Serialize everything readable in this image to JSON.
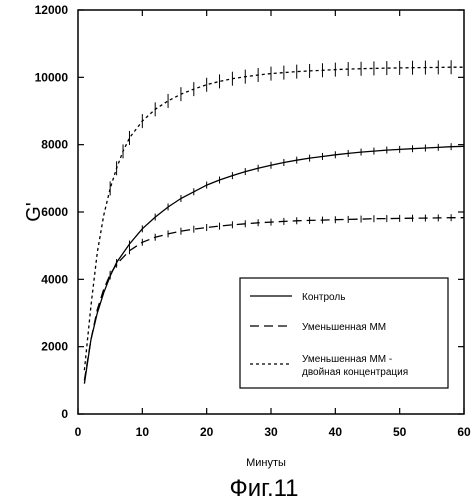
{
  "chart_data": {
    "type": "line",
    "title": "",
    "xlabel": "Минуты",
    "ylabel": "G'",
    "caption": "Фиг.11",
    "xlim": [
      0,
      60
    ],
    "ylim": [
      0,
      12000
    ],
    "x_ticks": [
      "0",
      "10",
      "20",
      "30",
      "40",
      "50",
      "60"
    ],
    "y_ticks": [
      "0",
      "2000",
      "4000",
      "6000",
      "8000",
      "10000",
      "12000"
    ],
    "grid": false,
    "legend_position": "bottom-right",
    "series": [
      {
        "name": "Контроль",
        "style": "solid",
        "x": [
          1,
          2,
          3,
          4,
          5,
          6,
          8,
          10,
          12,
          14,
          16,
          18,
          20,
          22,
          24,
          26,
          28,
          30,
          32,
          34,
          36,
          38,
          40,
          42,
          44,
          46,
          48,
          50,
          52,
          54,
          56,
          58,
          60
        ],
        "y": [
          900,
          2200,
          3000,
          3600,
          4100,
          4500,
          5050,
          5500,
          5850,
          6150,
          6400,
          6600,
          6800,
          6950,
          7080,
          7200,
          7300,
          7390,
          7470,
          7540,
          7600,
          7650,
          7700,
          7740,
          7780,
          7810,
          7840,
          7860,
          7880,
          7900,
          7920,
          7940,
          7950
        ]
      },
      {
        "name": "Уменьшенная ММ",
        "style": "dashed",
        "x": [
          1,
          2,
          3,
          4,
          5,
          6,
          8,
          10,
          12,
          14,
          16,
          18,
          20,
          22,
          24,
          26,
          28,
          30,
          32,
          34,
          36,
          38,
          40,
          42,
          44,
          46,
          48,
          50,
          52,
          54,
          56,
          58,
          60
        ],
        "y": [
          1000,
          2200,
          3100,
          3700,
          4150,
          4450,
          4850,
          5100,
          5250,
          5350,
          5430,
          5490,
          5540,
          5580,
          5620,
          5650,
          5680,
          5700,
          5720,
          5740,
          5750,
          5760,
          5770,
          5780,
          5790,
          5800,
          5805,
          5810,
          5815,
          5820,
          5825,
          5830,
          5830
        ]
      },
      {
        "name": "Уменьшенная ММ - двойная концентрация",
        "style": "dotted",
        "x": [
          1,
          2,
          3,
          4,
          5,
          6,
          7,
          8,
          10,
          12,
          14,
          16,
          18,
          20,
          22,
          24,
          26,
          28,
          30,
          32,
          34,
          36,
          38,
          40,
          42,
          44,
          46,
          48,
          50,
          52,
          54,
          56,
          58,
          60
        ],
        "y": [
          1300,
          3200,
          4800,
          5900,
          6700,
          7300,
          7800,
          8200,
          8700,
          9050,
          9300,
          9500,
          9650,
          9780,
          9880,
          9960,
          10020,
          10070,
          10110,
          10140,
          10170,
          10190,
          10210,
          10230,
          10245,
          10255,
          10265,
          10275,
          10280,
          10285,
          10290,
          10295,
          10300,
          10300
        ]
      }
    ]
  }
}
